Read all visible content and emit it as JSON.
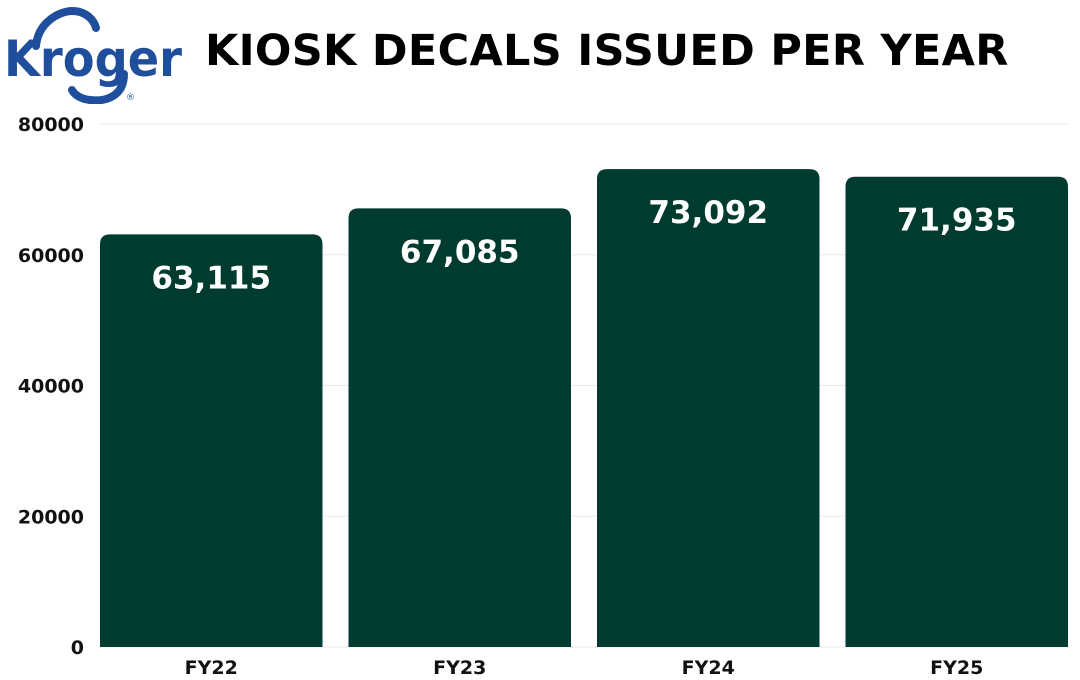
{
  "brand": {
    "logo_text": "Kroger",
    "logo_mark": "®",
    "logo_color": "#1f4e9c"
  },
  "chart_data": {
    "type": "bar",
    "title": "KIOSK DECALS ISSUED PER YEAR",
    "xlabel": "",
    "ylabel": "",
    "categories": [
      "FY22",
      "FY23",
      "FY24",
      "FY25"
    ],
    "values": [
      63115,
      67085,
      73092,
      71935
    ],
    "data_labels": [
      "63,115",
      "67,085",
      "73,092",
      "71,935"
    ],
    "ylim": [
      0,
      80000
    ],
    "yticks": [
      0,
      20000,
      40000,
      60000,
      80000
    ],
    "ytick_labels": [
      "0",
      "20000",
      "40000",
      "60000",
      "80000"
    ],
    "grid": true,
    "legend": "none",
    "bar_color": "#003b2f",
    "label_color": "#ffffff"
  }
}
